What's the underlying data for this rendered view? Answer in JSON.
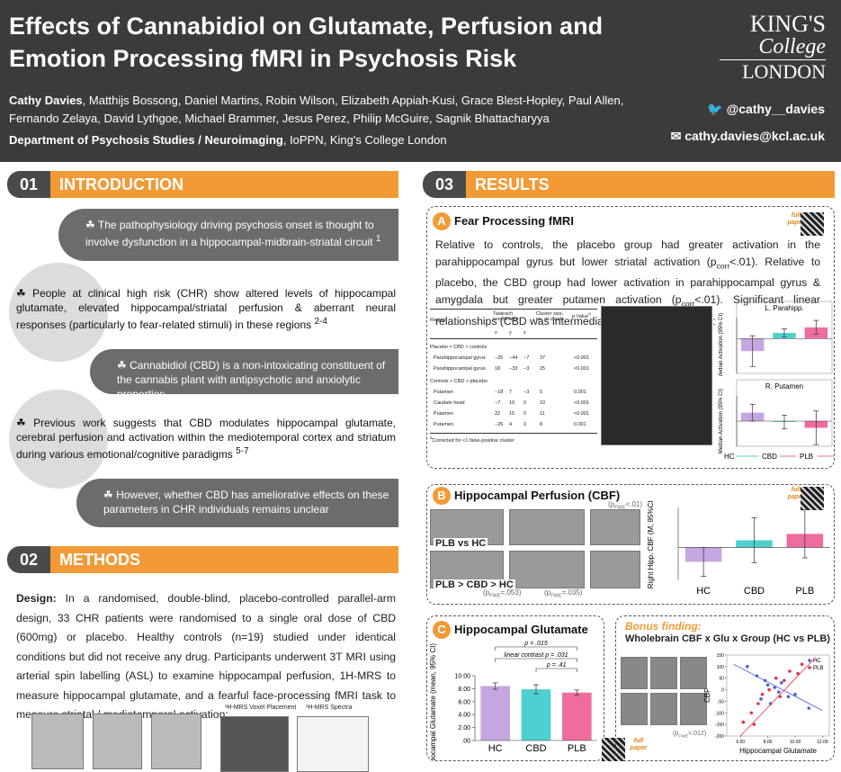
{
  "header": {
    "title_line1": "Effects of Cannabidiol on Glutamate, Perfusion and",
    "title_line2": "Emotion Processing fMRI in Psychosis Risk",
    "lead_author": "Cathy Davies",
    "authors": ", Matthijs Bossong, Daniel Martins, Robin Wilson, Elizabeth Appiah-Kusi, Grace Blest-Hopley, Paul Allen, Fernando Zelaya, David Lythgoe, Michael Brammer, Jesus Perez, Philip McGuire, Sagnik Bhattacharyya",
    "department": "Department of Psychosis Studies / Neuroimaging",
    "affiliation": ", IoPPN, King's College London",
    "logo": [
      "KING'S",
      "College",
      "LONDON"
    ],
    "twitter": "@cathy__davies",
    "email": "cathy.davies@kcl.ac.uk"
  },
  "intro": {
    "number": "01",
    "title": "INTRODUCTION",
    "items": [
      {
        "text": "The pathophysiology driving psychosis onset is thought to involve dysfunction in a hippocampal-midbrain-striatal circuit ",
        "ref": "1"
      },
      {
        "text": "People at clinical high risk (CHR) show altered levels of hippocampal glutamate, elevated hippocampal/striatal perfusion & aberrant neural responses (particularly to fear-related stimuli) in these regions ",
        "ref": "2-4"
      },
      {
        "text": "Cannabidiol (CBD) is a non-intoxicating constituent of the cannabis plant with antipsychotic and anxiolytic properties"
      },
      {
        "text": "Previous work suggests that CBD modulates hippocampal glutamate, cerebral perfusion and activation within the mediotemporal cortex and striatum during various emotional/cognitive paradigms ",
        "ref": "5-7"
      },
      {
        "text": "However, whether CBD has ameliorative effects on these parameters in CHR individuals remains unclear"
      }
    ]
  },
  "methods": {
    "number": "02",
    "title": "METHODS",
    "design_label": "Design:",
    "design_text": " In a randomised, double-blind, placebo-controlled parallel-arm design, 33 CHR patients were randomised to a single oral dose of CBD (600mg) or placebo. Healthy controls (n=19) studied under identical conditions but did not receive any drug. Participants underwent 3T MRI using arterial spin labelling (ASL) to examine hippocampal perfusion, 1H-MRS to measure hippocampal glutamate, and a fearful face-processing fMRI task to measure striatal / mediotemporal activation:",
    "image_labels": [
      "¹H-MRS Voxel Placement",
      "¹H-MRS Spectra"
    ]
  },
  "results": {
    "number": "03",
    "title": "RESULTS"
  },
  "qr_label": "full paper",
  "panel_a": {
    "letter": "A",
    "title": "Fear Processing fMRI",
    "text": [
      {
        "t": "Relative to controls, the placebo group had greater activation in the parahippocampal gyrus but lower striatal activation (p"
      },
      {
        "sub": "corr"
      },
      {
        "t": "<.01). Relative to placebo, the CBD group had lower activation in parahippocampal gyrus & amygdala but greater putamen activation (p"
      },
      {
        "sub": "corr"
      },
      {
        "t": "<.01). Significant linear relationships (CBD was intermediate) in following regions:"
      }
    ],
    "table": {
      "headers": [
        "Region",
        "Talairach coordinates",
        "Cluster size, no. of voxels",
        "p Value"
      ],
      "p_sup": "a",
      "axes": [
        "x",
        "y",
        "z"
      ],
      "groups": [
        {
          "label": "Placebo > CBD > controls",
          "rows": [
            [
              "Parahippocampal gyrus",
              "−25",
              "−44",
              "−7",
              "37",
              "<0.001"
            ],
            [
              "Parahippocampal gyrus",
              "18",
              "−33",
              "−3",
              "25",
              "<0.001"
            ]
          ]
        },
        {
          "label": "Controls > CBD > placebo",
          "rows": [
            [
              "Putamen",
              "−18",
              "7",
              "−3",
              "5",
              "0.001"
            ],
            [
              "Caudate head",
              "−7",
              "19",
              "0",
              "10",
              "<0.001"
            ],
            [
              "Putamen",
              "22",
              "15",
              "0",
              "11",
              "<0.001"
            ],
            [
              "Putamen",
              "−25",
              "4",
              "3",
              "8",
              "0.001"
            ]
          ]
        }
      ],
      "footnote_sup": "a",
      "footnote": "Corrected for <1 false-positive cluster"
    }
  },
  "panel_b": {
    "letter": "B",
    "title": "Hippocampal Perfusion (CBF)",
    "labels": [
      "PLB vs HC",
      "PLB > CBD > HC"
    ],
    "stats": [
      [
        {
          "t": "(p"
        },
        {
          "sub": "FWE"
        },
        {
          "t": "<.01)"
        }
      ],
      [
        {
          "t": "(p"
        },
        {
          "sub": "FWE"
        },
        {
          "t": "=.053)"
        }
      ],
      [
        {
          "t": "(p"
        },
        {
          "sub": "FWE"
        },
        {
          "t": "=.035)"
        }
      ]
    ]
  },
  "panel_c": {
    "letter": "C",
    "title": "Hippocampal Glutamate"
  },
  "bonus": {
    "kicker": "Bonus finding:",
    "title": "Wholebrain CBF x Glu x Group (HC vs PLB)",
    "stat": [
      {
        "t": "(p"
      },
      {
        "sub": "FWE"
      },
      {
        "t": "=.012)"
      }
    ]
  },
  "chart_data": [
    {
      "type": "bar",
      "title": "L. Parahipp.",
      "y_label": "Median Activation (95% CI)",
      "values": [
        -0.9,
        0.4,
        0.8
      ],
      "errors": [
        1.1,
        0.3,
        0.5
      ],
      "colors": [
        "#c6a6e0",
        "#4fd0d0",
        "#ee6d9e"
      ],
      "ylim": [
        -2.5,
        1.5
      ]
    },
    {
      "type": "bar",
      "title": "R. Putamen",
      "y_label": "Median Activation (95% CI)",
      "categories": [
        "HC",
        "CBD",
        "PLB"
      ],
      "values": [
        0.5,
        -0.05,
        -0.4
      ],
      "errors": [
        0.5,
        0.4,
        1.0
      ],
      "colors": [
        "#c6a6e0",
        "#4fd0d0",
        "#ee6d9e"
      ],
      "ylim": [
        -1.5,
        1.5
      ]
    },
    {
      "type": "bar",
      "y_label": "Right Hipp. CBF (M, 95%CI)",
      "categories": [
        "HC",
        "CBD",
        "PLB"
      ],
      "values": [
        -18,
        9,
        17
      ],
      "errors": [
        18,
        28,
        30
      ],
      "colors": [
        "#c6a6e0",
        "#4fd0d0",
        "#ee6d9e"
      ],
      "ylim": [
        -40,
        50
      ]
    },
    {
      "type": "bar",
      "y_label": "Hippocampal Glutamate (mean, 95% CI)",
      "categories": [
        "HC",
        "CBD",
        "PLB"
      ],
      "values": [
        8.4,
        7.9,
        7.4
      ],
      "errors": [
        0.5,
        0.7,
        0.4
      ],
      "colors": [
        "#c6a6e0",
        "#4fd0d0",
        "#ee6d9e"
      ],
      "ylim": [
        0,
        10
      ],
      "yticks": [
        {
          "value": 0,
          "label": ".00"
        },
        {
          "value": 2,
          "label": "2.00"
        },
        {
          "value": 4,
          "label": "4.00"
        },
        {
          "value": 6,
          "label": "6.00"
        },
        {
          "value": 8,
          "label": "8.00"
        },
        {
          "value": 10,
          "label": "10.00"
        }
      ],
      "annotations": [
        "p = .015",
        "linear contrast p = .031",
        "p = .41"
      ]
    },
    {
      "type": "scatter",
      "x_label": "Hippocampal Glutamate",
      "y_label": "CBF",
      "xlim": [
        5,
        12.5
      ],
      "ylim": [
        -200,
        150
      ],
      "xticks": [
        {
          "value": 6,
          "label": "6.00"
        },
        {
          "value": 8,
          "label": "8.00"
        },
        {
          "value": 10,
          "label": "10.00"
        },
        {
          "value": 12,
          "label": "12.00"
        }
      ],
      "yticks": [
        -200,
        -150,
        -100,
        -50,
        0,
        50,
        100,
        150
      ],
      "legend": "top-right",
      "series": [
        {
          "name": "HC",
          "color": "#4a62d8",
          "x": [
            6.5,
            7.2,
            7.8,
            8.0,
            8.5,
            8.8,
            9.0,
            9.5,
            10.0,
            7.5,
            8.2,
            11.0
          ],
          "y": [
            100,
            60,
            40,
            20,
            10,
            -10,
            30,
            -30,
            -20,
            -40,
            -60,
            -80
          ],
          "fit": [
            [
              5.5,
              110
            ],
            [
              12,
              -90
            ]
          ]
        },
        {
          "name": "PLB",
          "color": "#e0344a",
          "x": [
            6.2,
            6.8,
            7.3,
            7.6,
            8.1,
            8.6,
            9.2,
            9.6,
            10.2,
            8.9,
            7.0,
            10.5
          ],
          "y": [
            -140,
            -100,
            -60,
            -20,
            0,
            50,
            40,
            80,
            70,
            -30,
            -150,
            110
          ],
          "fit": [
            [
              6,
              -200
            ],
            [
              11.5,
              140
            ]
          ]
        }
      ]
    }
  ]
}
